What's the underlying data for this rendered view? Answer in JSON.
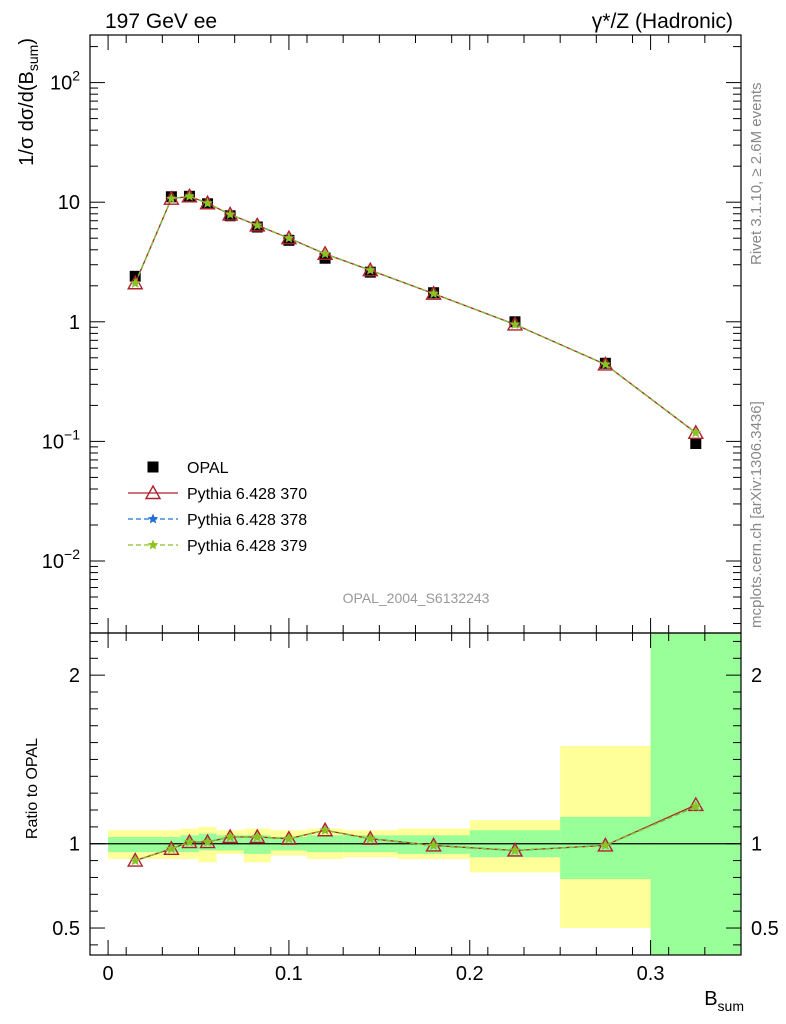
{
  "header": {
    "left": "197 GeV ee",
    "right": "γ*/Z (Hadronic)"
  },
  "side": {
    "rivet": "Rivet 3.1.10, ≥ 2.6M events",
    "mcplots": "mcplots.cern.ch [arXiv:1306.3436]"
  },
  "analysis_label": "OPAL_2004_S6132243",
  "chart_data": [
    {
      "type": "line",
      "panel": "main",
      "yscale": "log",
      "ylim": [
        0.0025,
        250
      ],
      "xlim": [
        -0.01,
        0.35
      ],
      "ylabel_parts": {
        "main": "1/σ dσ/d(B",
        "sub": "sum",
        "end": ")"
      },
      "yticks": [
        {
          "value": 0.01,
          "base": "10",
          "exp": "−2"
        },
        {
          "value": 0.1,
          "base": "10",
          "exp": "−1"
        },
        {
          "value": 1,
          "label": "1"
        },
        {
          "value": 10,
          "label": "10"
        },
        {
          "value": 100,
          "base": "10",
          "exp": "2"
        }
      ],
      "x": [
        0.015,
        0.035,
        0.045,
        0.055,
        0.0675,
        0.0825,
        0.1,
        0.12,
        0.145,
        0.18,
        0.225,
        0.275,
        0.325
      ],
      "series": [
        {
          "name": "OPAL",
          "color": "#000000",
          "marker": "square",
          "values": [
            2.4,
            11.1,
            11.2,
            9.7,
            7.7,
            6.2,
            4.8,
            3.4,
            2.6,
            1.75,
            1.0,
            0.45,
            0.096
          ]
        },
        {
          "name": "Pythia 6.428 370",
          "color": "#b0202c",
          "marker": "triangle-open",
          "line": "solid",
          "values": [
            2.1,
            10.7,
            11.2,
            9.8,
            7.9,
            6.4,
            5.0,
            3.7,
            2.7,
            1.72,
            0.95,
            0.44,
            0.118
          ]
        },
        {
          "name": "Pythia 6.428 378",
          "color": "#1f6fd6",
          "marker": "star",
          "line": "dashed",
          "values": [
            2.1,
            10.7,
            11.2,
            9.8,
            7.9,
            6.4,
            5.0,
            3.7,
            2.7,
            1.72,
            0.95,
            0.44,
            0.118
          ]
        },
        {
          "name": "Pythia 6.428 379",
          "color": "#8ec21f",
          "marker": "star",
          "line": "dashed",
          "values": [
            2.1,
            10.7,
            11.2,
            9.8,
            7.9,
            6.4,
            5.0,
            3.7,
            2.7,
            1.72,
            0.95,
            0.44,
            0.118
          ]
        }
      ]
    },
    {
      "type": "line",
      "panel": "ratio",
      "ylabel": "Ratio to OPAL",
      "ylim": [
        0.34,
        2.25
      ],
      "xlim": [
        -0.01,
        0.35
      ],
      "xlabel_parts": {
        "main": "B",
        "sub": "sum"
      },
      "xticks": [
        {
          "value": 0,
          "label": "0"
        },
        {
          "value": 0.1,
          "label": "0.1"
        },
        {
          "value": 0.2,
          "label": "0.2"
        },
        {
          "value": 0.3,
          "label": "0.3"
        }
      ],
      "yticks": [
        {
          "value": 0.5,
          "label": "0.5"
        },
        {
          "value": 1,
          "label": "1"
        },
        {
          "value": 2,
          "label": "2"
        }
      ],
      "bins": [
        [
          0.0,
          0.03
        ],
        [
          0.03,
          0.04
        ],
        [
          0.04,
          0.05
        ],
        [
          0.05,
          0.06
        ],
        [
          0.06,
          0.075
        ],
        [
          0.075,
          0.09
        ],
        [
          0.09,
          0.11
        ],
        [
          0.11,
          0.13
        ],
        [
          0.13,
          0.16
        ],
        [
          0.16,
          0.2
        ],
        [
          0.2,
          0.25
        ],
        [
          0.25,
          0.3
        ],
        [
          0.3,
          0.35
        ]
      ],
      "band_total": [
        [
          0.91,
          1.08
        ],
        [
          0.91,
          1.08
        ],
        [
          0.91,
          1.09
        ],
        [
          0.89,
          1.1
        ],
        [
          0.94,
          1.08
        ],
        [
          0.89,
          1.09
        ],
        [
          0.93,
          1.08
        ],
        [
          0.91,
          1.09
        ],
        [
          0.92,
          1.08
        ],
        [
          0.91,
          1.09
        ],
        [
          0.83,
          1.14
        ],
        [
          0.5,
          1.58
        ],
        [
          0.34,
          2.25
        ]
      ],
      "band_stat": [
        [
          0.95,
          1.04
        ],
        [
          0.95,
          1.04
        ],
        [
          0.95,
          1.05
        ],
        [
          0.96,
          1.06
        ],
        [
          0.96,
          1.05
        ],
        [
          0.94,
          1.05
        ],
        [
          0.96,
          1.04
        ],
        [
          0.95,
          1.05
        ],
        [
          0.95,
          1.05
        ],
        [
          0.94,
          1.05
        ],
        [
          0.92,
          1.08
        ],
        [
          0.79,
          1.16
        ],
        [
          0.34,
          2.25
        ]
      ],
      "band_colors": {
        "total": "#ffff99",
        "stat": "#99ff99"
      },
      "x": [
        0.015,
        0.035,
        0.045,
        0.055,
        0.0675,
        0.0825,
        0.1,
        0.12,
        0.145,
        0.18,
        0.225,
        0.275,
        0.325
      ],
      "series": [
        {
          "name": "Pythia 6.428 370",
          "color": "#b0202c",
          "marker": "triangle-open",
          "line": "solid",
          "values": [
            0.9,
            0.97,
            1.01,
            1.01,
            1.04,
            1.04,
            1.03,
            1.08,
            1.03,
            0.99,
            0.96,
            0.99,
            1.23
          ]
        },
        {
          "name": "Pythia 6.428 378",
          "color": "#1f6fd6",
          "marker": "star",
          "line": "dashed",
          "values": [
            0.9,
            0.97,
            1.01,
            1.01,
            1.04,
            1.04,
            1.03,
            1.08,
            1.03,
            0.99,
            0.96,
            0.99,
            1.22
          ]
        },
        {
          "name": "Pythia 6.428 379",
          "color": "#8ec21f",
          "marker": "star",
          "line": "dashed",
          "values": [
            0.9,
            0.97,
            1.01,
            1.01,
            1.04,
            1.04,
            1.03,
            1.08,
            1.03,
            0.99,
            0.96,
            0.99,
            1.22
          ]
        }
      ]
    }
  ]
}
